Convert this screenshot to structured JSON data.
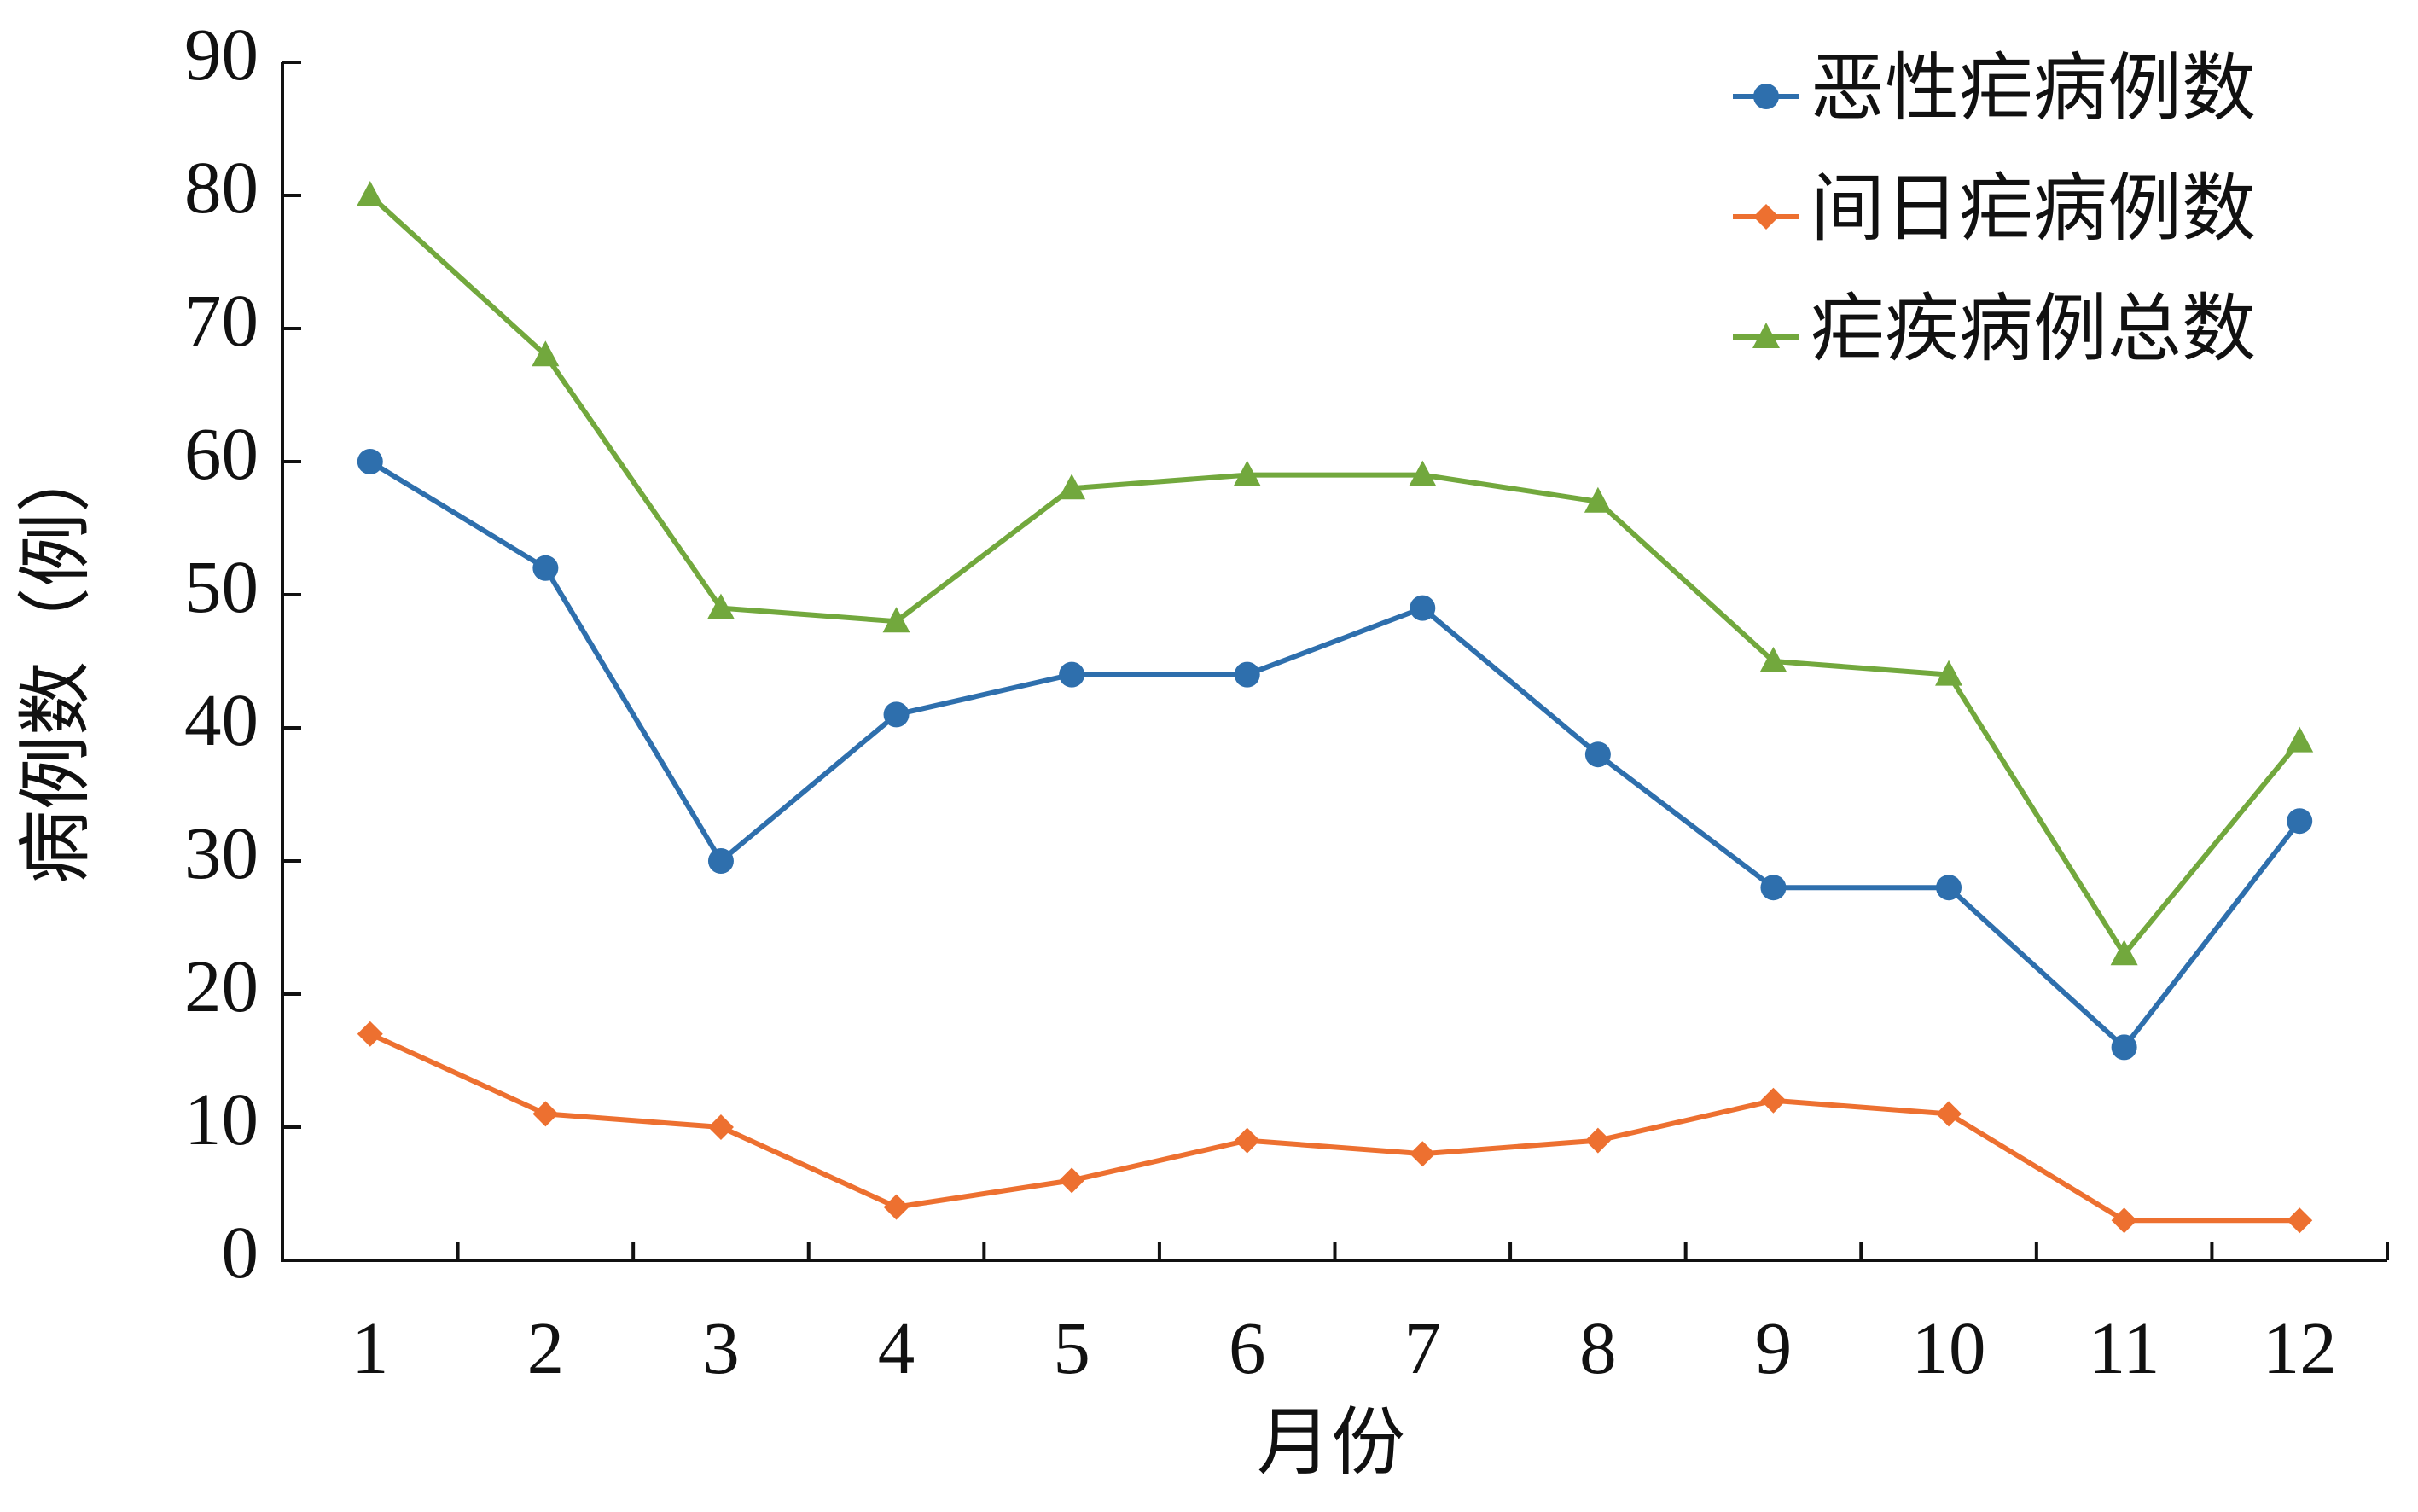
{
  "chart_data": {
    "type": "line",
    "x_label": "月份",
    "y_label": "病例数（例）",
    "categories": [
      "1",
      "2",
      "3",
      "4",
      "5",
      "6",
      "7",
      "8",
      "9",
      "10",
      "11",
      "12"
    ],
    "series": [
      {
        "name": "恶性疟病例数",
        "color": "#2e6fad",
        "marker": "circle",
        "values": [
          60,
          52,
          30,
          41,
          44,
          44,
          49,
          38,
          28,
          28,
          16,
          33
        ]
      },
      {
        "name": "间日疟病例数",
        "color": "#ed7030",
        "marker": "diamond",
        "values": [
          17,
          11,
          10,
          4,
          6,
          9,
          8,
          9,
          12,
          11,
          3,
          3
        ]
      },
      {
        "name": "疟疾病例总数",
        "color": "#72a83d",
        "marker": "triangle",
        "values": [
          80,
          68,
          49,
          48,
          58,
          59,
          59,
          57,
          45,
          44,
          23,
          39
        ]
      }
    ],
    "ylim": [
      0,
      90
    ],
    "yticks": [
      0,
      10,
      20,
      30,
      40,
      50,
      60,
      70,
      80,
      90
    ],
    "grid": false,
    "legend": "upper right"
  }
}
